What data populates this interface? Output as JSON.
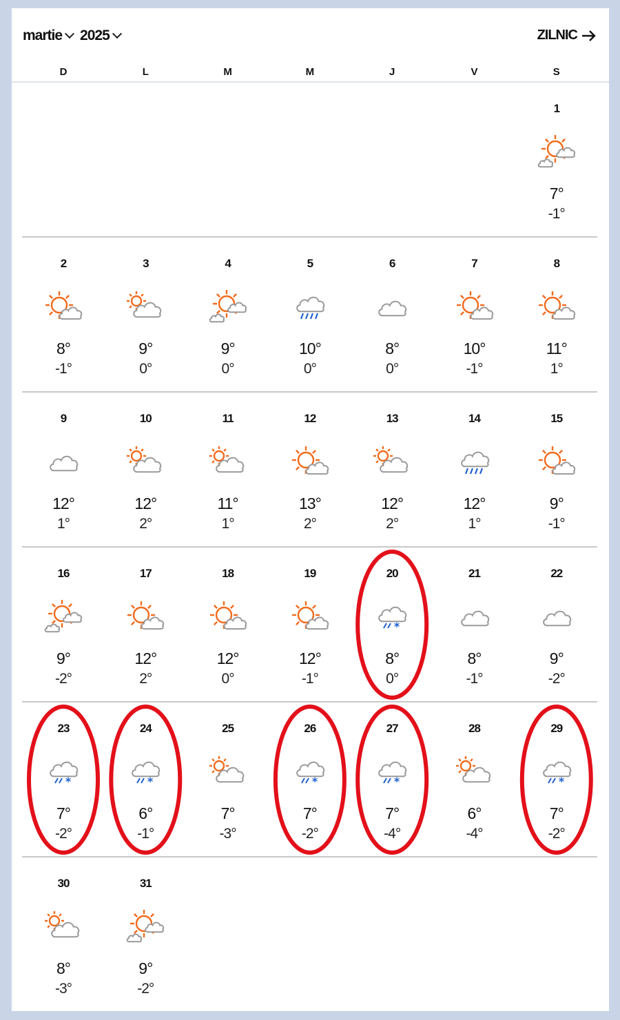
{
  "header": {
    "month": "martie",
    "year": "2025",
    "daily_link": "ZILNIC"
  },
  "weekdays": [
    "D",
    "L",
    "M",
    "M",
    "J",
    "V",
    "S"
  ],
  "colors": {
    "sun": "#f26a1b",
    "cloud": "#9a9a9a",
    "precip": "#1f5fcf",
    "annotation": "#e3101a",
    "background": "#c9d5e7"
  },
  "first_weekday_index": 6,
  "days": [
    {
      "day": "1",
      "icon": "sun-two-clouds",
      "hi": "7°",
      "lo": "-1°"
    },
    {
      "day": "2",
      "icon": "sun-cloud",
      "hi": "8°",
      "lo": "-1°"
    },
    {
      "day": "3",
      "icon": "cloud-sun",
      "hi": "9°",
      "lo": "0°"
    },
    {
      "day": "4",
      "icon": "sun-two-clouds",
      "hi": "9°",
      "lo": "0°"
    },
    {
      "day": "5",
      "icon": "rain",
      "hi": "10°",
      "lo": "0°"
    },
    {
      "day": "6",
      "icon": "cloud",
      "hi": "8°",
      "lo": "0°"
    },
    {
      "day": "7",
      "icon": "sun-cloud",
      "hi": "10°",
      "lo": "-1°"
    },
    {
      "day": "8",
      "icon": "sun-cloud",
      "hi": "11°",
      "lo": "1°"
    },
    {
      "day": "9",
      "icon": "cloud",
      "hi": "12°",
      "lo": "1°"
    },
    {
      "day": "10",
      "icon": "cloud-sun",
      "hi": "12°",
      "lo": "2°"
    },
    {
      "day": "11",
      "icon": "cloud-sun",
      "hi": "11°",
      "lo": "1°"
    },
    {
      "day": "12",
      "icon": "sun-cloud",
      "hi": "13°",
      "lo": "2°"
    },
    {
      "day": "13",
      "icon": "cloud-sun",
      "hi": "12°",
      "lo": "2°"
    },
    {
      "day": "14",
      "icon": "rain",
      "hi": "12°",
      "lo": "1°"
    },
    {
      "day": "15",
      "icon": "sun-cloud",
      "hi": "9°",
      "lo": "-1°"
    },
    {
      "day": "16",
      "icon": "sun-two-clouds",
      "hi": "9°",
      "lo": "-2°"
    },
    {
      "day": "17",
      "icon": "sun-cloud",
      "hi": "12°",
      "lo": "2°"
    },
    {
      "day": "18",
      "icon": "sun-cloud",
      "hi": "12°",
      "lo": "0°"
    },
    {
      "day": "19",
      "icon": "sun-cloud",
      "hi": "12°",
      "lo": "-1°"
    },
    {
      "day": "20",
      "icon": "sleet",
      "hi": "8°",
      "lo": "0°",
      "circled": true
    },
    {
      "day": "21",
      "icon": "cloud",
      "hi": "8°",
      "lo": "-1°"
    },
    {
      "day": "22",
      "icon": "cloud",
      "hi": "9°",
      "lo": "-2°"
    },
    {
      "day": "23",
      "icon": "sleet",
      "hi": "7°",
      "lo": "-2°",
      "circled": true
    },
    {
      "day": "24",
      "icon": "sleet",
      "hi": "6°",
      "lo": "-1°",
      "circled": true
    },
    {
      "day": "25",
      "icon": "cloud-sun",
      "hi": "7°",
      "lo": "-3°"
    },
    {
      "day": "26",
      "icon": "sleet",
      "hi": "7°",
      "lo": "-2°",
      "circled": true
    },
    {
      "day": "27",
      "icon": "sleet",
      "hi": "7°",
      "lo": "-4°",
      "circled": true
    },
    {
      "day": "28",
      "icon": "cloud-sun",
      "hi": "6°",
      "lo": "-4°"
    },
    {
      "day": "29",
      "icon": "sleet",
      "hi": "7°",
      "lo": "-2°",
      "circled": true
    },
    {
      "day": "30",
      "icon": "cloud-sun",
      "hi": "8°",
      "lo": "-3°"
    },
    {
      "day": "31",
      "icon": "sun-two-clouds",
      "hi": "9°",
      "lo": "-2°"
    }
  ]
}
